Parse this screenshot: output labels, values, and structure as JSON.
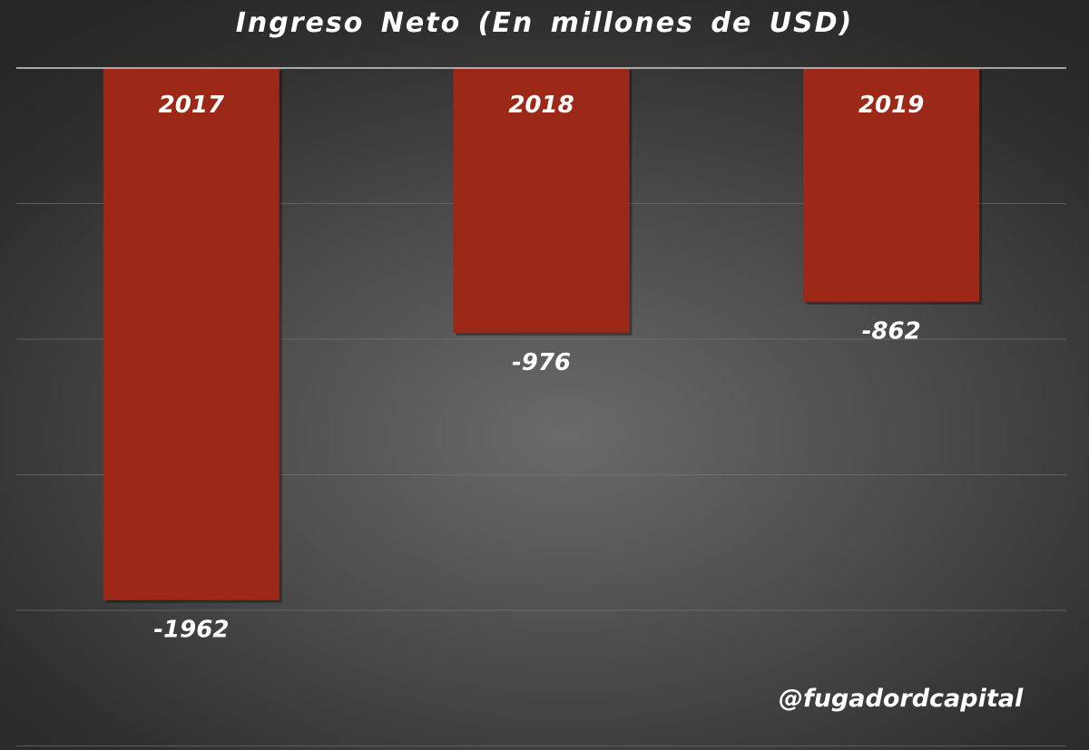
{
  "chart_data": {
    "type": "bar",
    "title": "Ingreso Neto (En millones de USD)",
    "categories": [
      "2017",
      "2018",
      "2019"
    ],
    "values": [
      -1962,
      -976,
      -862
    ],
    "value_labels": [
      "-1962",
      "-976",
      "-862"
    ],
    "ylim": [
      -2500,
      0
    ],
    "grid": true,
    "bar_color": "#9c2817",
    "category_label_placement": "inside-bar-top",
    "value_label_placement": "below-bar-end"
  },
  "watermark": "@fugadordcapital"
}
